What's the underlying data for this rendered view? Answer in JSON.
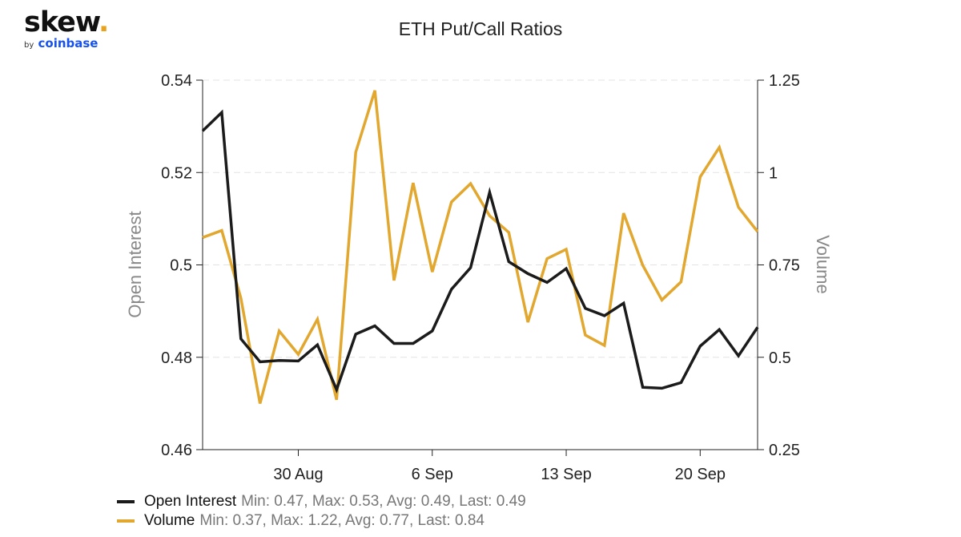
{
  "logo": {
    "brand": "skew",
    "dot": ".",
    "by": "by",
    "company": "coinbase"
  },
  "colors": {
    "open_interest": "#1b1b1b",
    "volume": "#e2a72e",
    "grid": "#e3e3e3",
    "axis": "#222222"
  },
  "chart_data": {
    "type": "line",
    "title": "ETH Put/Call Ratios",
    "ylabel": "Open Interest",
    "y2label": "Volume",
    "ylim": [
      0.46,
      0.54
    ],
    "y2lim": [
      0.25,
      1.25
    ],
    "yticks": [
      "0.46",
      "0.48",
      "0.5",
      "0.52",
      "0.54"
    ],
    "y2ticks": [
      "0.25",
      "0.5",
      "0.75",
      "1",
      "1.25"
    ],
    "xticks": [
      {
        "label": "30 Aug",
        "index": 5
      },
      {
        "label": "6 Sep",
        "index": 12
      },
      {
        "label": "13 Sep",
        "index": 19
      },
      {
        "label": "20 Sep",
        "index": 26
      }
    ],
    "grid": true,
    "legend": "bottom-left",
    "series": [
      {
        "name": "Open Interest",
        "axis": "left",
        "stats": "Min: 0.47, Max: 0.53, Avg: 0.49, Last: 0.49",
        "values": [
          0.529,
          0.533,
          0.484,
          0.479,
          0.4793,
          0.4792,
          0.4827,
          0.473,
          0.485,
          0.4868,
          0.483,
          0.483,
          0.4857,
          0.4947,
          0.4994,
          0.5157,
          0.5007,
          0.4981,
          0.4962,
          0.4992,
          0.4906,
          0.489,
          0.4917,
          0.4735,
          0.4733,
          0.4745,
          0.4824,
          0.486,
          0.4803,
          0.4865
        ]
      },
      {
        "name": "Volume",
        "axis": "right",
        "stats": "Min: 0.37, Max: 1.22, Avg: 0.77, Last: 0.84",
        "values": [
          0.824,
          0.843,
          0.66,
          0.375,
          0.571,
          0.508,
          0.603,
          0.385,
          1.055,
          1.222,
          0.708,
          0.972,
          0.731,
          0.92,
          0.97,
          0.883,
          0.838,
          0.595,
          0.767,
          0.792,
          0.56,
          0.532,
          0.89,
          0.749,
          0.655,
          0.704,
          0.988,
          1.068,
          0.906,
          0.84
        ]
      }
    ]
  }
}
